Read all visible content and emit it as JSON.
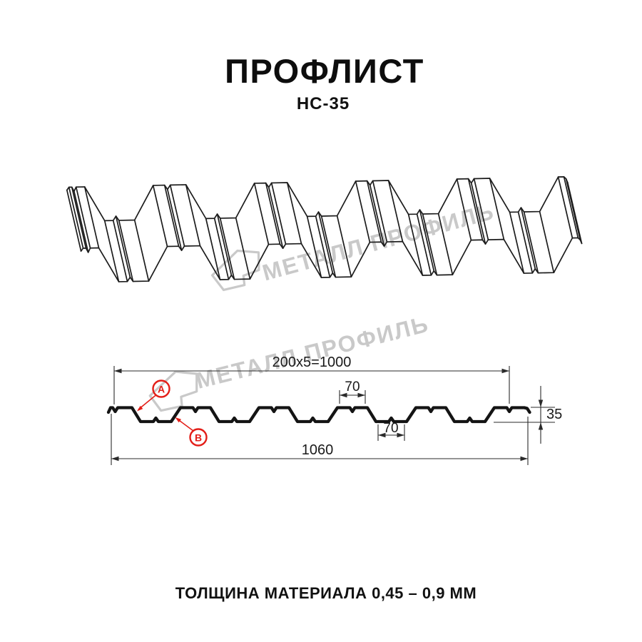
{
  "header": {
    "title": "ПРОФЛИСТ",
    "subtitle": "НС-35"
  },
  "footer": {
    "note": "ТОЛЩИНА МАТЕРИАЛА 0,45 – 0,9 ММ"
  },
  "watermark": {
    "brand": "МЕТАЛЛ ПРОФИЛЬ",
    "color": "#c9c9c9"
  },
  "diagram": {
    "line_color": "#1c1c1c",
    "dimensions": {
      "pitch_total": "200x5=1000",
      "overall_width": "1060",
      "rib_top_width": "70",
      "rib_bottom_width": "70",
      "profile_height": "35"
    },
    "markers": {
      "side_a": "A",
      "side_b": "B",
      "color": "#e31e18"
    }
  }
}
